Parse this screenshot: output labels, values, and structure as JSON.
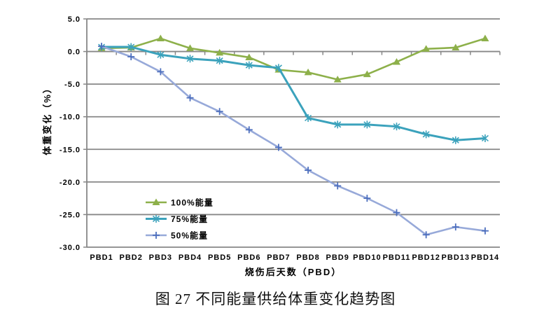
{
  "figure_caption": "图 27 不同能量供给体重变化趋势图",
  "chart_data": {
    "type": "line",
    "xlabel": "烧伤后天数（PBD）",
    "ylabel": "体重变化（%）",
    "categories": [
      "PBD1",
      "PBD2",
      "PBD3",
      "PBD4",
      "PBD5",
      "PBD6",
      "PBD7",
      "PBD8",
      "PBD9",
      "PBD10",
      "PBD11",
      "PBD12",
      "PBD13",
      "PBD14"
    ],
    "ylim": [
      -30,
      5
    ],
    "ytick_step": 5,
    "ytick_labels": [
      "5.0",
      "0.0",
      "-5.0",
      "-10.0",
      "-15.0",
      "-20.0",
      "-25.0",
      "-30.0"
    ],
    "grid": true,
    "legend_position": "inside-lower-left",
    "series": [
      {
        "name": "100%能量",
        "marker": "triangle",
        "color": "#8DB04A",
        "marker_color": "#8DB04A",
        "values": [
          0.5,
          0.6,
          2.0,
          0.5,
          -0.2,
          -0.9,
          -2.8,
          -3.2,
          -4.3,
          -3.5,
          -1.6,
          0.4,
          0.6,
          2.0
        ]
      },
      {
        "name": "75%能量",
        "marker": "asterisk",
        "color": "#3BA2BC",
        "marker_color": "#3BA2BC",
        "values": [
          0.7,
          0.7,
          -0.5,
          -1.1,
          -1.4,
          -2.1,
          -2.5,
          -10.2,
          -11.2,
          -11.2,
          -11.5,
          -12.7,
          -13.6,
          -13.3
        ]
      },
      {
        "name": "50%能量",
        "marker": "plus",
        "color": "#97A9D9",
        "marker_color": "#4D6FBE",
        "values": [
          0.8,
          -0.8,
          -3.1,
          -7.1,
          -9.2,
          -12.0,
          -14.7,
          -18.2,
          -20.6,
          -22.5,
          -24.7,
          -28.1,
          -26.9,
          -27.5
        ]
      }
    ],
    "colors": {
      "gridline": "#878787",
      "axis": "#878787",
      "text": "#000000",
      "background": "#FFFFFF"
    }
  }
}
